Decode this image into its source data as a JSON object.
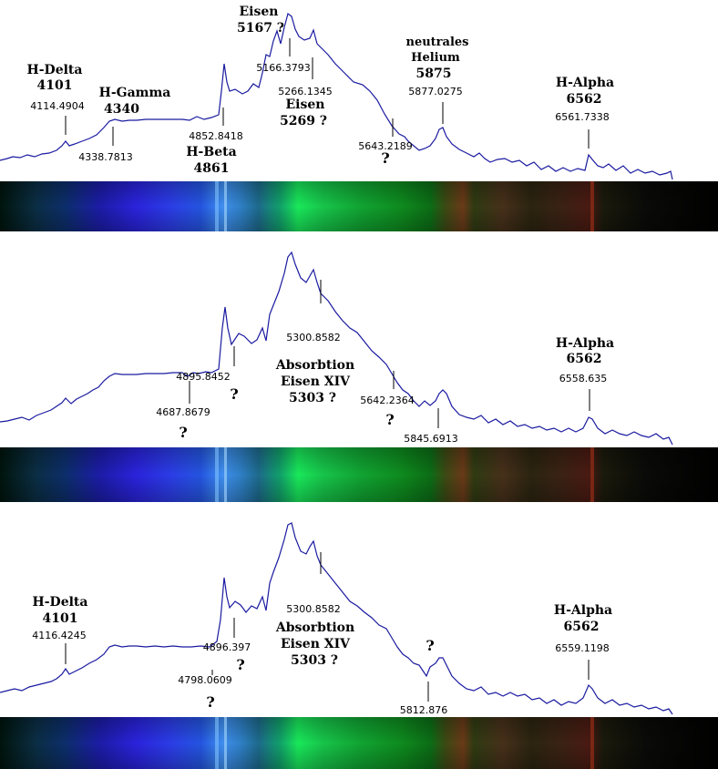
{
  "colors": {
    "curve": "#1a1aa0",
    "line": "#000000",
    "background": "#ffffff"
  },
  "chart_data": [
    {
      "type": "line",
      "title": "",
      "xlabel": "",
      "ylabel": "",
      "labels": {
        "h_delta": [
          "H-Delta",
          "4101"
        ],
        "h_gamma": [
          "H-Gamma",
          "4340"
        ],
        "h_beta": [
          "H-Beta",
          "4861"
        ],
        "eisen_5167": [
          "Eisen",
          "5167 ?"
        ],
        "eisen_5269": [
          "Eisen",
          "5269 ?"
        ],
        "helium": [
          "neutrales",
          "Helium",
          "5875"
        ],
        "h_alpha": [
          "H-Alpha",
          "6562"
        ],
        "q1": "?"
      },
      "readouts": [
        "4114.4904",
        "4338.7813",
        "4852.8418",
        "5166.3793",
        "5266.1345",
        "5643.2189",
        "5877.0275",
        "6561.7338"
      ]
    },
    {
      "type": "line",
      "title": "",
      "xlabel": "",
      "ylabel": "",
      "labels": {
        "absorption": [
          "Absorbtion",
          "Eisen XIV",
          "5303 ?"
        ],
        "h_alpha": [
          "H-Alpha",
          "6562"
        ],
        "q1": "?",
        "q2": "?",
        "q3": "?"
      },
      "readouts": [
        "4687.8679",
        "4895.8452",
        "5300.8582",
        "5642.2364",
        "5845.6913",
        "6558.635"
      ]
    },
    {
      "type": "line",
      "title": "",
      "xlabel": "",
      "ylabel": "",
      "labels": {
        "h_delta": [
          "H-Delta",
          "4101"
        ],
        "absorption": [
          "Absorbtion",
          "Eisen XIV",
          "5303 ?"
        ],
        "h_alpha": [
          "H-Alpha",
          "6562"
        ],
        "q1": "?",
        "q2": "?",
        "q3": "?"
      },
      "readouts": [
        "4116.4245",
        "4798.0609",
        "4896.397",
        "5300.8582",
        "5812.876",
        "6559.1198"
      ]
    }
  ]
}
